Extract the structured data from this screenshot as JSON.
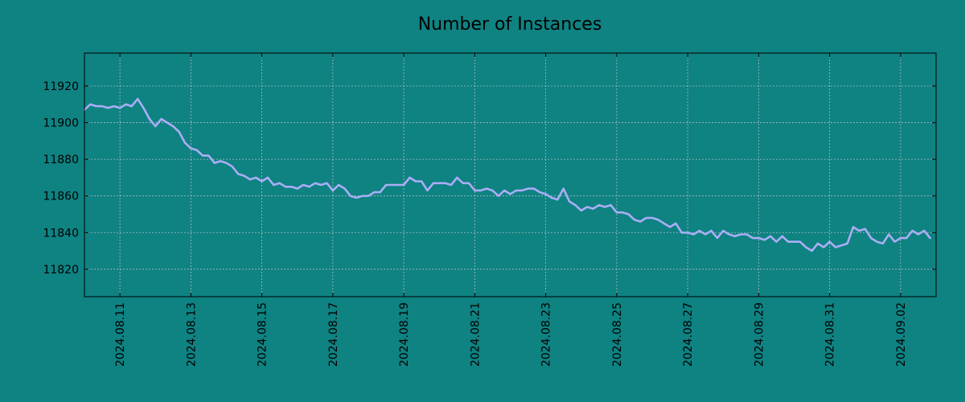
{
  "chart_data": {
    "type": "line",
    "title": "Number of Instances",
    "xlabel": "",
    "ylabel": "",
    "x_range": [
      "2024-08-10",
      "2024-09-03"
    ],
    "ylim": [
      11805,
      11938
    ],
    "grid": true,
    "legend": "none",
    "colors": {
      "background": "#0f8282",
      "line": "#a9aef5",
      "grid": "#c8c8c8"
    },
    "x_ticks": [
      "2024.08.11",
      "2024.08.13",
      "2024.08.15",
      "2024.08.17",
      "2024.08.19",
      "2024.08.21",
      "2024.08.23",
      "2024.08.25",
      "2024.08.27",
      "2024.08.29",
      "2024.08.31",
      "2024.09.02"
    ],
    "y_ticks": [
      11820,
      11840,
      11860,
      11880,
      11900,
      11920
    ],
    "series": [
      {
        "name": "",
        "points": [
          [
            "2024-08-10T00:00",
            11907
          ],
          [
            "2024-08-10T04:00",
            11910
          ],
          [
            "2024-08-10T08:00",
            11909
          ],
          [
            "2024-08-10T12:00",
            11909
          ],
          [
            "2024-08-10T16:00",
            11908
          ],
          [
            "2024-08-10T20:00",
            11909
          ],
          [
            "2024-08-11T00:00",
            11908
          ],
          [
            "2024-08-11T04:00",
            11910
          ],
          [
            "2024-08-11T08:00",
            11909
          ],
          [
            "2024-08-11T12:00",
            11913
          ],
          [
            "2024-08-11T16:00",
            11908
          ],
          [
            "2024-08-11T20:00",
            11902
          ],
          [
            "2024-08-12T00:00",
            11898
          ],
          [
            "2024-08-12T04:00",
            11902
          ],
          [
            "2024-08-12T08:00",
            11900
          ],
          [
            "2024-08-12T12:00",
            11898
          ],
          [
            "2024-08-12T16:00",
            11895
          ],
          [
            "2024-08-12T20:00",
            11889
          ],
          [
            "2024-08-13T00:00",
            11886
          ],
          [
            "2024-08-13T04:00",
            11885
          ],
          [
            "2024-08-13T08:00",
            11882
          ],
          [
            "2024-08-13T12:00",
            11882
          ],
          [
            "2024-08-13T16:00",
            11878
          ],
          [
            "2024-08-13T20:00",
            11879
          ],
          [
            "2024-08-14T00:00",
            11878
          ],
          [
            "2024-08-14T04:00",
            11876
          ],
          [
            "2024-08-14T08:00",
            11872
          ],
          [
            "2024-08-14T12:00",
            11871
          ],
          [
            "2024-08-14T16:00",
            11869
          ],
          [
            "2024-08-14T20:00",
            11870
          ],
          [
            "2024-08-15T00:00",
            11868
          ],
          [
            "2024-08-15T04:00",
            11870
          ],
          [
            "2024-08-15T08:00",
            11866
          ],
          [
            "2024-08-15T12:00",
            11867
          ],
          [
            "2024-08-15T16:00",
            11865
          ],
          [
            "2024-08-15T20:00",
            11865
          ],
          [
            "2024-08-16T00:00",
            11864
          ],
          [
            "2024-08-16T04:00",
            11866
          ],
          [
            "2024-08-16T08:00",
            11865
          ],
          [
            "2024-08-16T12:00",
            11867
          ],
          [
            "2024-08-16T16:00",
            11866
          ],
          [
            "2024-08-16T20:00",
            11867
          ],
          [
            "2024-08-17T00:00",
            11863
          ],
          [
            "2024-08-17T04:00",
            11866
          ],
          [
            "2024-08-17T08:00",
            11864
          ],
          [
            "2024-08-17T12:00",
            11860
          ],
          [
            "2024-08-17T16:00",
            11859
          ],
          [
            "2024-08-17T20:00",
            11860
          ],
          [
            "2024-08-18T00:00",
            11860
          ],
          [
            "2024-08-18T04:00",
            11862
          ],
          [
            "2024-08-18T08:00",
            11862
          ],
          [
            "2024-08-18T12:00",
            11866
          ],
          [
            "2024-08-18T16:00",
            11866
          ],
          [
            "2024-08-18T20:00",
            11866
          ],
          [
            "2024-08-19T00:00",
            11866
          ],
          [
            "2024-08-19T04:00",
            11870
          ],
          [
            "2024-08-19T08:00",
            11868
          ],
          [
            "2024-08-19T12:00",
            11868
          ],
          [
            "2024-08-19T16:00",
            11863
          ],
          [
            "2024-08-19T20:00",
            11867
          ],
          [
            "2024-08-20T00:00",
            11867
          ],
          [
            "2024-08-20T04:00",
            11867
          ],
          [
            "2024-08-20T08:00",
            11866
          ],
          [
            "2024-08-20T12:00",
            11870
          ],
          [
            "2024-08-20T16:00",
            11867
          ],
          [
            "2024-08-20T20:00",
            11867
          ],
          [
            "2024-08-21T00:00",
            11863
          ],
          [
            "2024-08-21T04:00",
            11863
          ],
          [
            "2024-08-21T08:00",
            11864
          ],
          [
            "2024-08-21T12:00",
            11863
          ],
          [
            "2024-08-21T16:00",
            11860
          ],
          [
            "2024-08-21T20:00",
            11863
          ],
          [
            "2024-08-22T00:00",
            11861
          ],
          [
            "2024-08-22T04:00",
            11863
          ],
          [
            "2024-08-22T08:00",
            11863
          ],
          [
            "2024-08-22T12:00",
            11864
          ],
          [
            "2024-08-22T16:00",
            11864
          ],
          [
            "2024-08-22T20:00",
            11862
          ],
          [
            "2024-08-23T00:00",
            11861
          ],
          [
            "2024-08-23T04:00",
            11859
          ],
          [
            "2024-08-23T08:00",
            11858
          ],
          [
            "2024-08-23T12:00",
            11864
          ],
          [
            "2024-08-23T16:00",
            11857
          ],
          [
            "2024-08-23T20:00",
            11855
          ],
          [
            "2024-08-24T00:00",
            11852
          ],
          [
            "2024-08-24T04:00",
            11854
          ],
          [
            "2024-08-24T08:00",
            11853
          ],
          [
            "2024-08-24T12:00",
            11855
          ],
          [
            "2024-08-24T16:00",
            11854
          ],
          [
            "2024-08-24T20:00",
            11855
          ],
          [
            "2024-08-25T00:00",
            11851
          ],
          [
            "2024-08-25T04:00",
            11851
          ],
          [
            "2024-08-25T08:00",
            11850
          ],
          [
            "2024-08-25T12:00",
            11847
          ],
          [
            "2024-08-25T16:00",
            11846
          ],
          [
            "2024-08-25T20:00",
            11848
          ],
          [
            "2024-08-26T00:00",
            11848
          ],
          [
            "2024-08-26T04:00",
            11847
          ],
          [
            "2024-08-26T08:00",
            11845
          ],
          [
            "2024-08-26T12:00",
            11843
          ],
          [
            "2024-08-26T16:00",
            11845
          ],
          [
            "2024-08-26T20:00",
            11840
          ],
          [
            "2024-08-27T00:00",
            11840
          ],
          [
            "2024-08-27T04:00",
            11839
          ],
          [
            "2024-08-27T08:00",
            11841
          ],
          [
            "2024-08-27T12:00",
            11839
          ],
          [
            "2024-08-27T16:00",
            11841
          ],
          [
            "2024-08-27T20:00",
            11837
          ],
          [
            "2024-08-28T00:00",
            11841
          ],
          [
            "2024-08-28T04:00",
            11839
          ],
          [
            "2024-08-28T08:00",
            11838
          ],
          [
            "2024-08-28T12:00",
            11839
          ],
          [
            "2024-08-28T16:00",
            11839
          ],
          [
            "2024-08-28T20:00",
            11837
          ],
          [
            "2024-08-29T00:00",
            11837
          ],
          [
            "2024-08-29T04:00",
            11836
          ],
          [
            "2024-08-29T08:00",
            11838
          ],
          [
            "2024-08-29T12:00",
            11835
          ],
          [
            "2024-08-29T16:00",
            11838
          ],
          [
            "2024-08-29T20:00",
            11835
          ],
          [
            "2024-08-30T00:00",
            11835
          ],
          [
            "2024-08-30T04:00",
            11835
          ],
          [
            "2024-08-30T08:00",
            11832
          ],
          [
            "2024-08-30T12:00",
            11830
          ],
          [
            "2024-08-30T16:00",
            11834
          ],
          [
            "2024-08-30T20:00",
            11832
          ],
          [
            "2024-08-31T00:00",
            11835
          ],
          [
            "2024-08-31T04:00",
            11832
          ],
          [
            "2024-08-31T08:00",
            11833
          ],
          [
            "2024-08-31T12:00",
            11834
          ],
          [
            "2024-08-31T16:00",
            11843
          ],
          [
            "2024-08-31T20:00",
            11841
          ],
          [
            "2024-09-01T00:00",
            11842
          ],
          [
            "2024-09-01T04:00",
            11837
          ],
          [
            "2024-09-01T08:00",
            11835
          ],
          [
            "2024-09-01T12:00",
            11834
          ],
          [
            "2024-09-01T16:00",
            11839
          ],
          [
            "2024-09-01T20:00",
            11835
          ],
          [
            "2024-09-02T00:00",
            11837
          ],
          [
            "2024-09-02T04:00",
            11837
          ],
          [
            "2024-09-02T08:00",
            11841
          ],
          [
            "2024-09-02T12:00",
            11839
          ],
          [
            "2024-09-02T16:00",
            11841
          ],
          [
            "2024-09-02T20:00",
            11837
          ]
        ]
      }
    ]
  }
}
